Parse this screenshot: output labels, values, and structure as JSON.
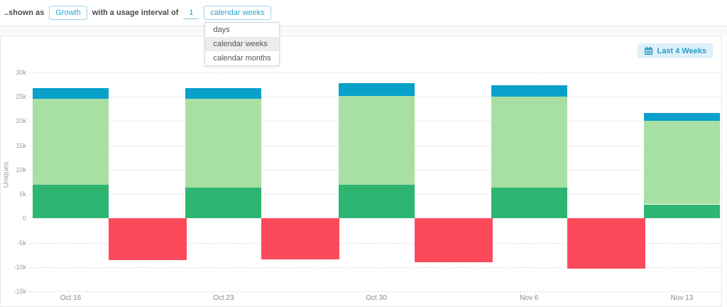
{
  "header": {
    "prefix_label": "..shown as",
    "metric_button_label": "Growth",
    "interval_label": "with a usage interval of",
    "interval_value": "1",
    "interval_unit_button_label": "calendar weeks",
    "dropdown": {
      "options": [
        "days",
        "calendar weeks",
        "calendar months"
      ],
      "selected": "calendar weeks"
    }
  },
  "toolbar": {
    "range_button_label": "Last 4 Weeks"
  },
  "colors": {
    "accent_blue": "#2ba6cb",
    "bar_blue": "#09a1ca",
    "bar_dark_green": "#2eb572",
    "bar_light_green": "#a8dfa2",
    "bar_red": "#fb4b5b",
    "gridline": "#e2e2e2"
  },
  "chart_data": {
    "type": "bar",
    "stacked": true,
    "title": "",
    "xlabel": "",
    "ylabel": "Uniques",
    "categories": [
      "Oct 16",
      "Oct 23",
      "Oct 30",
      "Nov 6",
      "Nov 13"
    ],
    "series": [
      {
        "name": "bottom-segment-dark-green",
        "color": "#2eb572",
        "values": [
          6900,
          6300,
          6900,
          6300,
          2900
        ]
      },
      {
        "name": "middle-segment-light-green",
        "color": "#a8dfa2",
        "values": [
          17600,
          18200,
          18300,
          18700,
          17200
        ]
      },
      {
        "name": "top-segment-blue",
        "color": "#09a1ca",
        "values": [
          2300,
          2200,
          2600,
          2400,
          1500
        ]
      },
      {
        "name": "negative-segment-red",
        "color": "#fb4b5b",
        "values": [
          -8500,
          -8400,
          -9000,
          -10300,
          null
        ]
      }
    ],
    "bar_totals_positive": [
      26800,
      26700,
      27800,
      27400,
      21600
    ],
    "ylim": [
      -15000,
      30000
    ],
    "ytick_step": 5000,
    "ytick_labels": [
      "30k",
      "25k",
      "20k",
      "15k",
      "10k",
      "5k",
      "0",
      "-5k",
      "-10k",
      "-15k"
    ],
    "grid": "horizontal-dashed",
    "legend": "none",
    "layout_hints": {
      "negative_bars_offset_right": true,
      "last_period_no_negative_bar": true,
      "zero_gridline_hidden": true
    }
  }
}
